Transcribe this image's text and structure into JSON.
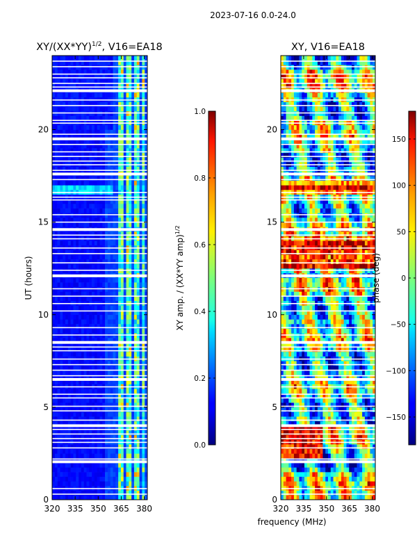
{
  "page_title": "2023-07-16 0.0-24.0",
  "chart_data": [
    {
      "type": "heatmap",
      "title": "XY/(XX*YY)",
      "title_superscript": "1/2",
      "title_suffix": ", V16=EA18",
      "xlabel": "",
      "ylabel": "UT (hours)",
      "xlim": [
        320,
        382
      ],
      "ylim": [
        0,
        24
      ],
      "xticks": [
        "320",
        "335",
        "350",
        "365",
        "380"
      ],
      "yticks": [
        "0",
        "5",
        "10",
        "15",
        "20"
      ],
      "colorbar": {
        "label": "XY amp. / (XX*YY amp)",
        "label_superscript": "1/2",
        "range": [
          0.0,
          1.0
        ],
        "ticks": [
          "0.0",
          "0.2",
          "0.4",
          "0.6",
          "0.8",
          "1.0"
        ]
      },
      "colormap": "jet",
      "flagged_bands_mhz": [
        [
          363,
          366
        ],
        [
          368,
          372
        ],
        [
          374,
          376
        ],
        [
          378,
          381
        ]
      ],
      "bright_row_hours": [
        16.75,
        17.0
      ]
    },
    {
      "type": "heatmap",
      "title": "XY, V16=EA18",
      "xlabel": "frequency (MHz)",
      "ylabel": "",
      "xlim": [
        320,
        382
      ],
      "ylim": [
        0,
        24
      ],
      "xticks": [
        "320",
        "335",
        "350",
        "365",
        "380"
      ],
      "yticks": [
        "0",
        "5",
        "10",
        "15",
        "20"
      ],
      "colorbar": {
        "label": "phase (deg)",
        "range": [
          -180,
          180
        ],
        "ticks": [
          "−150",
          "−100",
          "−50",
          "0",
          "50",
          "100",
          "150"
        ]
      },
      "colormap": "jet"
    }
  ],
  "gap_rows_hours": [
    0.3,
    0.6,
    2.05,
    2.2,
    2.8,
    3.1,
    3.3,
    3.55,
    3.8,
    4.0,
    4.3,
    4.8,
    5.05,
    5.5,
    5.7,
    6.1,
    6.5,
    6.7,
    7.0,
    7.3,
    7.6,
    8.05,
    8.25,
    8.5,
    8.9,
    9.3,
    10.2,
    10.6,
    11.0,
    11.4,
    12.1,
    12.4,
    12.8,
    13.3,
    13.6,
    14.1,
    14.3,
    14.6,
    15.0,
    15.4,
    16.2,
    16.35,
    16.6,
    17.3,
    17.6,
    17.8,
    18.1,
    18.3,
    18.55,
    18.8,
    19.2,
    19.5,
    19.75,
    20.35,
    20.5,
    20.9,
    21.3,
    21.6,
    22.1,
    22.3,
    22.5,
    22.8,
    23.0,
    23.4,
    23.7
  ]
}
